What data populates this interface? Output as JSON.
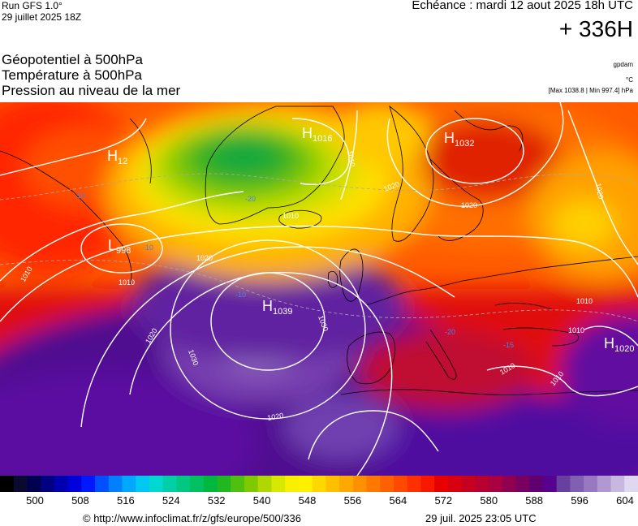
{
  "header": {
    "run_line1": "Run GFS 1.0°",
    "run_line2": "29 juillet 2025 18Z",
    "echeance": "Echéance : mardi 12 aout 2025 18h UTC",
    "hours": "+ 336H"
  },
  "titles": {
    "line1": "Géopotentiel à 500hPa",
    "line2": "Température à 500hPa",
    "line3": "Pression au niveau de la mer"
  },
  "units": {
    "gpdam": "gpdam",
    "celsius": "°C",
    "minmax": "[Max 1038.8 | Min 997.4] hPa"
  },
  "colors": {
    "background": "#ffffff",
    "isobar": "#ffffff",
    "coast": "#000000"
  },
  "pressure_centers": [
    {
      "type": "H",
      "value": "1016"
    },
    {
      "type": "H",
      "value": "1032"
    },
    {
      "type": "H",
      "value": "12"
    },
    {
      "type": "L",
      "value": "998"
    },
    {
      "type": "H",
      "value": "1039"
    },
    {
      "type": "H",
      "value": "1020"
    }
  ],
  "isobar_labels": [
    "1010",
    "1020",
    "1010",
    "1020",
    "1010",
    "1010",
    "1020",
    "1030",
    "1030",
    "1020",
    "1020",
    "1010",
    "1010",
    "1010",
    "1010",
    "1020"
  ],
  "temp_labels": [
    "-10",
    "-20",
    "-10",
    "-10",
    "-20",
    "-15"
  ],
  "colorbar": {
    "ticks": [
      "500",
      "508",
      "516",
      "524",
      "532",
      "540",
      "548",
      "556",
      "564",
      "572",
      "580",
      "588",
      "596",
      "604"
    ],
    "colors": [
      "#000000",
      "#0a0a30",
      "#000050",
      "#000080",
      "#0000b0",
      "#0000dd",
      "#0018ff",
      "#0050ff",
      "#0080ff",
      "#00a8ff",
      "#00c8f0",
      "#00d8d0",
      "#00d0a8",
      "#00c880",
      "#00c060",
      "#00b840",
      "#20b820",
      "#50c010",
      "#80c800",
      "#b0d800",
      "#d8e800",
      "#f8f000",
      "#fff000",
      "#ffd800",
      "#ffc000",
      "#ffa800",
      "#ff9000",
      "#ff7800",
      "#ff6000",
      "#ff4800",
      "#ff3000",
      "#f81800",
      "#e80000",
      "#d80010",
      "#c80020",
      "#b80030",
      "#a80040",
      "#900050",
      "#780060",
      "#600070",
      "#580090",
      "#6840a0",
      "#8060b0",
      "#9878c0",
      "#b098d0",
      "#c8b8e0",
      "#e0d8f0"
    ]
  },
  "footer": {
    "credit": "© http://www.infoclimat.fr/z/gfs/europe/500/336",
    "generated": "29 juil. 2025 23:05 UTC"
  }
}
